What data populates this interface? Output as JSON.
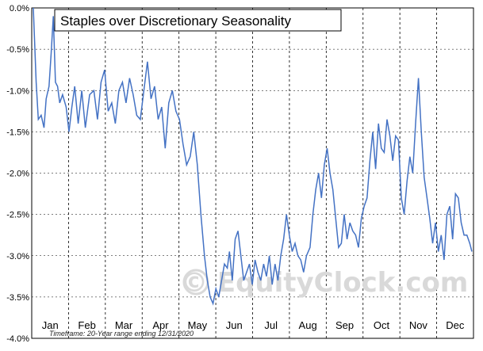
{
  "chart_data": {
    "type": "line",
    "title": "Staples over Discretionary Seasonality",
    "ylim": [
      -4.0,
      0.0
    ],
    "y_ticks": [
      "0.0%",
      "-0.5%",
      "-1.0%",
      "-1.5%",
      "-2.0%",
      "-2.5%",
      "-3.0%",
      "-3.5%",
      "-4.0%"
    ],
    "x_labels": [
      "Jan",
      "Feb",
      "Mar",
      "Apr",
      "May",
      "Jun",
      "Jul",
      "Aug",
      "Sep",
      "Oct",
      "Nov",
      "Dec"
    ],
    "grid": true,
    "footnote": "Timeframe: 20-Year range ending 12/31/2020",
    "watermark": "© EquityClock.com",
    "line_color": "#4472c4",
    "series": [
      {
        "values": [
          [
            0.0,
            0.0
          ],
          [
            0.4,
            -0.9
          ],
          [
            0.7,
            -1.35
          ],
          [
            1.1,
            -1.3
          ],
          [
            1.5,
            -1.45
          ],
          [
            1.8,
            -1.1
          ],
          [
            2.2,
            -0.95
          ],
          [
            2.5,
            -0.55
          ],
          [
            2.8,
            -0.1
          ],
          [
            3.1,
            -0.9
          ],
          [
            3.4,
            -0.95
          ],
          [
            3.7,
            -1.15
          ],
          [
            4.1,
            -1.05
          ],
          [
            4.6,
            -1.2
          ],
          [
            5.0,
            -1.5
          ],
          [
            5.4,
            -1.2
          ],
          [
            5.8,
            -0.95
          ],
          [
            6.3,
            -1.4
          ],
          [
            6.8,
            -1.0
          ],
          [
            7.3,
            -1.45
          ],
          [
            7.9,
            -1.05
          ],
          [
            8.5,
            -1.0
          ],
          [
            9.0,
            -1.35
          ],
          [
            9.5,
            -0.9
          ],
          [
            10.0,
            -0.75
          ],
          [
            10.5,
            -1.25
          ],
          [
            11.0,
            -1.15
          ],
          [
            11.5,
            -1.4
          ],
          [
            12.0,
            -1.0
          ],
          [
            12.5,
            -0.9
          ],
          [
            13.0,
            -1.15
          ],
          [
            13.5,
            -0.85
          ],
          [
            14.0,
            -1.05
          ],
          [
            14.5,
            -1.3
          ],
          [
            15.0,
            -1.35
          ],
          [
            15.5,
            -1.0
          ],
          [
            16.0,
            -0.65
          ],
          [
            16.5,
            -1.1
          ],
          [
            17.0,
            -0.95
          ],
          [
            17.5,
            -1.35
          ],
          [
            18.0,
            -1.2
          ],
          [
            18.5,
            -1.7
          ],
          [
            19.0,
            -1.15
          ],
          [
            19.5,
            -1.0
          ],
          [
            20.0,
            -1.25
          ],
          [
            20.5,
            -1.35
          ],
          [
            21.0,
            -1.65
          ],
          [
            21.5,
            -1.9
          ],
          [
            22.0,
            -1.8
          ],
          [
            22.5,
            -1.5
          ],
          [
            23.0,
            -1.9
          ],
          [
            23.5,
            -2.5
          ],
          [
            24.0,
            -3.0
          ],
          [
            24.4,
            -3.3
          ],
          [
            24.8,
            -3.5
          ],
          [
            25.2,
            -3.58
          ],
          [
            25.6,
            -3.4
          ],
          [
            26.0,
            -3.5
          ],
          [
            26.4,
            -3.3
          ],
          [
            26.8,
            -3.1
          ],
          [
            27.2,
            -3.15
          ],
          [
            27.5,
            -2.95
          ],
          [
            27.9,
            -3.3
          ],
          [
            28.3,
            -2.8
          ],
          [
            28.7,
            -2.7
          ],
          [
            29.1,
            -3.0
          ],
          [
            29.5,
            -3.3
          ],
          [
            29.9,
            -3.2
          ],
          [
            30.3,
            -3.1
          ],
          [
            30.7,
            -3.35
          ],
          [
            31.1,
            -3.05
          ],
          [
            31.5,
            -3.2
          ],
          [
            31.9,
            -3.3
          ],
          [
            32.3,
            -3.1
          ],
          [
            32.7,
            -3.25
          ],
          [
            33.1,
            -3.0
          ],
          [
            33.5,
            -3.35
          ],
          [
            33.9,
            -3.1
          ],
          [
            34.3,
            -3.3
          ],
          [
            34.7,
            -3.0
          ],
          [
            35.1,
            -2.8
          ],
          [
            35.5,
            -2.5
          ],
          [
            35.9,
            -2.75
          ],
          [
            36.3,
            -2.95
          ],
          [
            36.7,
            -2.85
          ],
          [
            37.1,
            -3.0
          ],
          [
            37.5,
            -3.05
          ],
          [
            37.9,
            -3.2
          ],
          [
            38.3,
            -3.0
          ],
          [
            38.8,
            -2.9
          ],
          [
            39.2,
            -2.5
          ],
          [
            39.6,
            -2.2
          ],
          [
            40.0,
            -2.0
          ],
          [
            40.4,
            -2.3
          ],
          [
            40.8,
            -1.9
          ],
          [
            41.2,
            -1.7
          ],
          [
            41.6,
            -2.0
          ],
          [
            42.0,
            -2.2
          ],
          [
            42.4,
            -2.55
          ],
          [
            42.8,
            -2.9
          ],
          [
            43.2,
            -2.85
          ],
          [
            43.6,
            -2.5
          ],
          [
            44.0,
            -2.8
          ],
          [
            44.4,
            -2.6
          ],
          [
            44.8,
            -2.7
          ],
          [
            45.2,
            -2.75
          ],
          [
            45.6,
            -2.9
          ],
          [
            46.0,
            -2.55
          ],
          [
            46.4,
            -2.4
          ],
          [
            46.8,
            -2.3
          ],
          [
            47.2,
            -1.85
          ],
          [
            47.6,
            -1.5
          ],
          [
            48.0,
            -1.95
          ],
          [
            48.4,
            -1.4
          ],
          [
            48.8,
            -1.7
          ],
          [
            49.2,
            -1.75
          ],
          [
            49.6,
            -1.35
          ],
          [
            50.0,
            -1.55
          ],
          [
            50.4,
            -1.85
          ],
          [
            50.8,
            -1.55
          ],
          [
            51.2,
            -1.6
          ],
          [
            51.6,
            -2.3
          ],
          [
            52.0,
            -2.5
          ],
          [
            52.4,
            -2.1
          ],
          [
            52.8,
            -1.8
          ],
          [
            53.2,
            -2.0
          ],
          [
            53.6,
            -1.4
          ],
          [
            54.0,
            -0.85
          ],
          [
            54.4,
            -1.5
          ],
          [
            54.8,
            -2.05
          ],
          [
            55.2,
            -2.3
          ],
          [
            55.6,
            -2.55
          ],
          [
            56.0,
            -2.85
          ],
          [
            56.4,
            -2.6
          ],
          [
            56.8,
            -2.95
          ],
          [
            57.2,
            -2.75
          ],
          [
            57.6,
            -3.05
          ],
          [
            58.0,
            -2.5
          ],
          [
            58.4,
            -2.4
          ],
          [
            58.8,
            -2.8
          ],
          [
            59.2,
            -2.25
          ],
          [
            59.6,
            -2.3
          ],
          [
            60.0,
            -2.6
          ],
          [
            60.4,
            -2.75
          ],
          [
            60.8,
            -2.75
          ],
          [
            61.2,
            -2.85
          ],
          [
            61.5,
            -2.95
          ]
        ]
      }
    ]
  }
}
